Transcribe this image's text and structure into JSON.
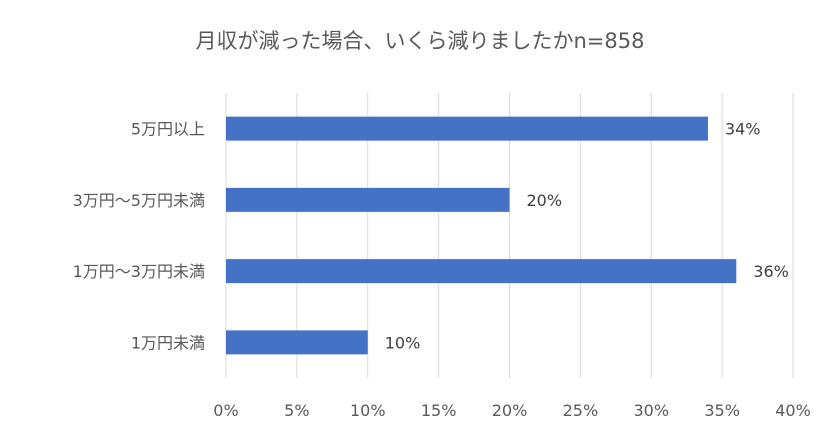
{
  "chart_data": {
    "type": "bar",
    "orientation": "horizontal",
    "title": "月収が減った場合、いくら減りましたかn=858",
    "xlabel": "",
    "ylabel": "",
    "categories": [
      "5万円以上",
      "3万円〜5万円未満",
      "1万円〜3万円未満",
      "1万円未満"
    ],
    "values": [
      34,
      20,
      36,
      10
    ],
    "value_labels": [
      "34%",
      "20%",
      "36%",
      "10%"
    ],
    "xlim": [
      0,
      40
    ],
    "x_ticks": [
      0,
      5,
      10,
      15,
      20,
      25,
      30,
      35,
      40
    ],
    "x_tick_labels": [
      "0%",
      "5%",
      "10%",
      "15%",
      "20%",
      "25%",
      "30%",
      "35%",
      "40%"
    ],
    "grid": true,
    "legend": "none",
    "bar_color": "#4472c4"
  }
}
